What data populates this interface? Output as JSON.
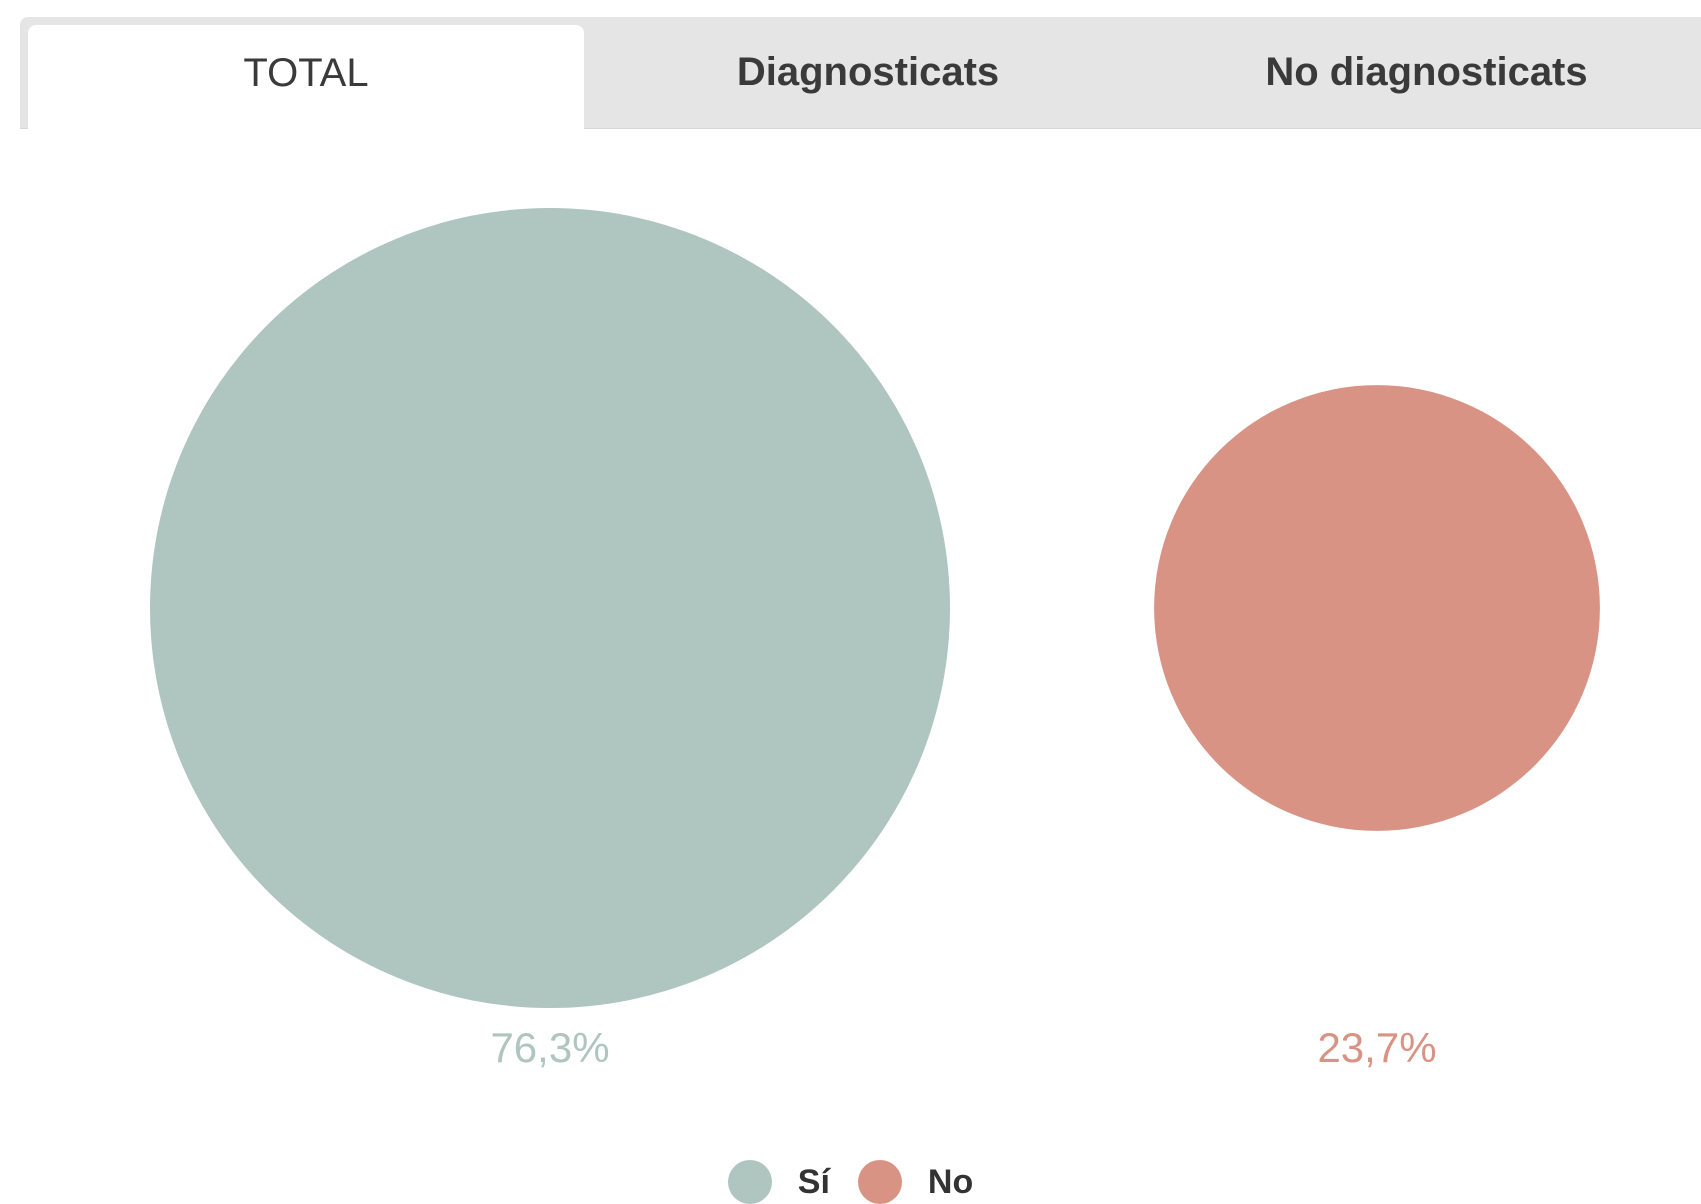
{
  "tabs": [
    {
      "label": "TOTAL",
      "active": true
    },
    {
      "label": "Diagnosticats",
      "active": false
    },
    {
      "label": "No diagnosticats",
      "active": false
    }
  ],
  "colors": {
    "si": "#afc5bf",
    "no": "#d89385"
  },
  "chart_data": {
    "type": "bubble",
    "title": "",
    "categories": [
      "Sí",
      "No"
    ],
    "values": [
      76.3,
      23.7
    ],
    "labels": [
      "76,3%",
      "23,7%"
    ],
    "colors": [
      "#afc5bf",
      "#d89385"
    ],
    "legend": {
      "placement": "bottom-center",
      "entries": [
        "Sí",
        "No"
      ]
    }
  }
}
